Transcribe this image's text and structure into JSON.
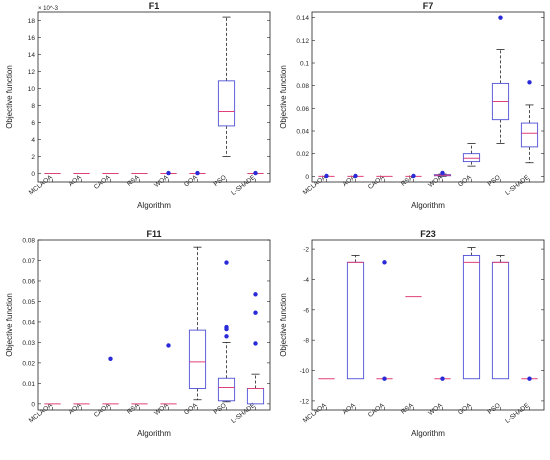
{
  "colors": {
    "box": "#4f4fd6",
    "median": "#e0407a",
    "whisker": "#222222",
    "outlier": "#2a2ad8",
    "axis": "#222222"
  },
  "chart_data": [
    {
      "type": "box",
      "title": "F1",
      "xlabel": "Algorithm",
      "ylabel": "Objective function",
      "scale_note": "× 10^-3",
      "categories": [
        "MCLAOA",
        "AOA",
        "CAOA",
        "RSA",
        "WOA",
        "GOA",
        "PSO",
        "L-SHADE"
      ],
      "ylim": [
        -1,
        19
      ],
      "yticks": [
        0,
        2,
        4,
        6,
        8,
        10,
        12,
        14,
        16,
        18
      ],
      "yticklabels": [
        "0",
        "2",
        "4",
        "6",
        "8",
        "10",
        "12",
        "14",
        "16",
        "18"
      ],
      "boxes": [
        {
          "min": 0,
          "q1": 0,
          "median": 0,
          "q3": 0,
          "max": 0,
          "outliers": []
        },
        {
          "min": 0,
          "q1": 0,
          "median": 0,
          "q3": 0,
          "max": 0,
          "outliers": []
        },
        {
          "min": 0,
          "q1": 0,
          "median": 0,
          "q3": 0,
          "max": 0,
          "outliers": []
        },
        {
          "min": 0,
          "q1": 0,
          "median": 0,
          "q3": 0,
          "max": 0,
          "outliers": []
        },
        {
          "min": 0,
          "q1": 0,
          "median": 0,
          "q3": 0,
          "max": 0,
          "outliers": [
            0.05
          ]
        },
        {
          "min": 0,
          "q1": 0,
          "median": 0,
          "q3": 0,
          "max": 0,
          "outliers": [
            0.05
          ]
        },
        {
          "min": 2,
          "q1": 5.6,
          "median": 7.3,
          "q3": 10.9,
          "max": 18.4,
          "outliers": []
        },
        {
          "min": 0,
          "q1": 0,
          "median": 0,
          "q3": 0,
          "max": 0,
          "outliers": [
            0.05
          ]
        }
      ]
    },
    {
      "type": "box",
      "title": "F7",
      "xlabel": "Algorithm",
      "ylabel": "Objective function",
      "categories": [
        "MCLAOA",
        "AOA",
        "CAOA",
        "RSA",
        "WOA",
        "GOA",
        "PSO",
        "L-SHADE"
      ],
      "ylim": [
        -0.005,
        0.145
      ],
      "yticks": [
        0,
        0.02,
        0.04,
        0.06,
        0.08,
        0.1,
        0.12,
        0.14
      ],
      "yticklabels": [
        "0",
        "0.02",
        "0.04",
        "0.06",
        "0.08",
        "0.1",
        "0.12",
        "0.14"
      ],
      "boxes": [
        {
          "min": 0,
          "q1": 0,
          "median": 0,
          "q3": 0,
          "max": 0,
          "outliers": [
            0.0003
          ]
        },
        {
          "min": 0,
          "q1": 0,
          "median": 0,
          "q3": 0,
          "max": 0,
          "outliers": [
            0.0003
          ]
        },
        {
          "min": 0,
          "q1": 0,
          "median": 0,
          "q3": 0,
          "max": 0,
          "outliers": []
        },
        {
          "min": 0,
          "q1": 0,
          "median": 0,
          "q3": 0,
          "max": 0,
          "outliers": [
            0.0003
          ]
        },
        {
          "min": 0,
          "q1": 0.0005,
          "median": 0.001,
          "q3": 0.0015,
          "max": 0.002,
          "outliers": [
            0.003
          ]
        },
        {
          "min": 0.009,
          "q1": 0.013,
          "median": 0.016,
          "q3": 0.02,
          "max": 0.029,
          "outliers": []
        },
        {
          "min": 0.029,
          "q1": 0.05,
          "median": 0.066,
          "q3": 0.082,
          "max": 0.112,
          "outliers": [
            0.14
          ]
        },
        {
          "min": 0.012,
          "q1": 0.026,
          "median": 0.038,
          "q3": 0.047,
          "max": 0.063,
          "outliers": [
            0.083
          ]
        }
      ]
    },
    {
      "type": "box",
      "title": "F11",
      "xlabel": "Algorithm",
      "ylabel": "Objective function",
      "categories": [
        "MCLAOA",
        "AOA",
        "CAOA",
        "RSA",
        "WOA",
        "GOA",
        "PSO",
        "L-SHADE"
      ],
      "ylim": [
        -0.003,
        0.08
      ],
      "yticks": [
        0,
        0.01,
        0.02,
        0.03,
        0.04,
        0.05,
        0.06,
        0.07,
        0.08
      ],
      "yticklabels": [
        "0",
        "0.01",
        "0.02",
        "0.03",
        "0.04",
        "0.05",
        "0.06",
        "0.07",
        "0.08"
      ],
      "boxes": [
        {
          "min": 0,
          "q1": 0,
          "median": 0,
          "q3": 0,
          "max": 0,
          "outliers": []
        },
        {
          "min": 0,
          "q1": 0,
          "median": 0,
          "q3": 0,
          "max": 0,
          "outliers": []
        },
        {
          "min": 0,
          "q1": 0,
          "median": 0,
          "q3": 0,
          "max": 0,
          "outliers": [
            0.022
          ]
        },
        {
          "min": 0,
          "q1": 0,
          "median": 0,
          "q3": 0,
          "max": 0,
          "outliers": []
        },
        {
          "min": 0,
          "q1": 0,
          "median": 0,
          "q3": 0,
          "max": 0,
          "outliers": [
            0.0285
          ]
        },
        {
          "min": 0.002,
          "q1": 0.0075,
          "median": 0.0205,
          "q3": 0.036,
          "max": 0.0765,
          "outliers": []
        },
        {
          "min": 0.001,
          "q1": 0.0015,
          "median": 0.008,
          "q3": 0.0125,
          "max": 0.03,
          "outliers": [
            0.033,
            0.0365,
            0.0375,
            0.069
          ]
        },
        {
          "min": 0,
          "q1": 0,
          "median": 0.0075,
          "q3": 0.0075,
          "max": 0.0145,
          "outliers": [
            0.0295,
            0.0445,
            0.0535
          ]
        }
      ]
    },
    {
      "type": "box",
      "title": "F23",
      "xlabel": "Algorithm",
      "ylabel": "Objective function",
      "categories": [
        "MCLAOA",
        "AOA",
        "CAOA",
        "RSA",
        "WOA",
        "GOA",
        "PSO",
        "L-SHADE"
      ],
      "ylim": [
        -12.6,
        -1.4
      ],
      "yticks": [
        -12,
        -10,
        -8,
        -6,
        -4,
        -2
      ],
      "yticklabels": [
        "-12",
        "-10",
        "-8",
        "-6",
        "-4",
        "-2"
      ],
      "boxes": [
        {
          "min": -10.54,
          "q1": -10.54,
          "median": -10.54,
          "q3": -10.54,
          "max": -10.54,
          "outliers": []
        },
        {
          "min": -10.54,
          "q1": -10.54,
          "median": -2.87,
          "q3": -2.87,
          "max": -2.42,
          "outliers": []
        },
        {
          "min": -10.54,
          "q1": -10.54,
          "median": -10.54,
          "q3": -10.54,
          "max": -10.54,
          "outliers": [
            -2.87,
            -10.54
          ]
        },
        {
          "min": -5.13,
          "q1": -5.13,
          "median": -5.13,
          "q3": -5.13,
          "max": -5.13,
          "outliers": []
        },
        {
          "min": -10.54,
          "q1": -10.54,
          "median": -10.54,
          "q3": -10.54,
          "max": -10.54,
          "outliers": [
            -10.54
          ]
        },
        {
          "min": -10.54,
          "q1": -10.54,
          "median": -2.87,
          "q3": -2.42,
          "max": -1.9,
          "outliers": []
        },
        {
          "min": -10.54,
          "q1": -10.54,
          "median": -2.87,
          "q3": -2.87,
          "max": -2.42,
          "outliers": []
        },
        {
          "min": -10.54,
          "q1": -10.54,
          "median": -10.54,
          "q3": -10.54,
          "max": -10.54,
          "outliers": [
            -10.54
          ]
        }
      ]
    }
  ]
}
